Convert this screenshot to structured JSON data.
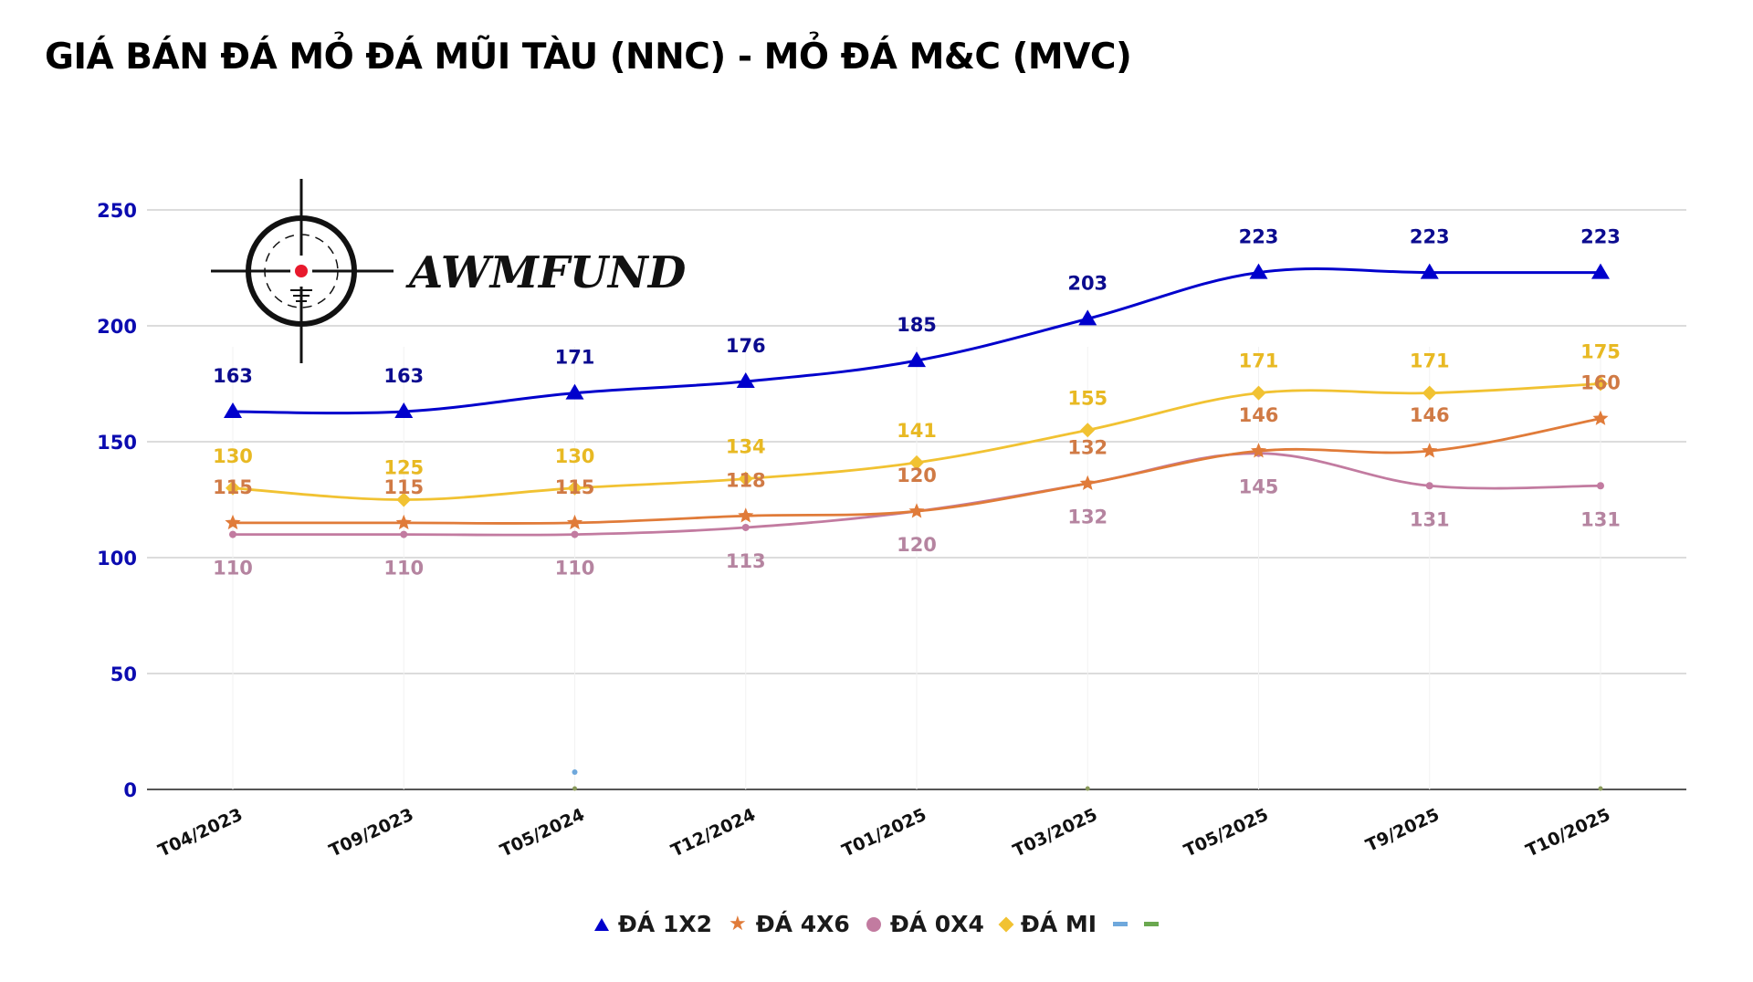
{
  "title": "GIÁ BÁN ĐÁ MỎ ĐÁ MŨI TÀU (NNC) - MỎ ĐÁ M&C (MVC)",
  "logo": {
    "text": "AWMFUND",
    "icon": "crosshair-icon"
  },
  "chart_data": {
    "type": "line",
    "title": "GIÁ BÁN ĐÁ MỎ ĐÁ MŨI TÀU (NNC) - MỎ ĐÁ M&C (MVC)",
    "xlabel": "",
    "ylabel": "",
    "ylim": [
      0,
      250
    ],
    "yticks": [
      0,
      50,
      100,
      150,
      200,
      250
    ],
    "grid": true,
    "legend_position": "bottom",
    "categories": [
      "T04/2023",
      "T09/2023",
      "T05/2024",
      "T12/2024",
      "T01/2025",
      "T03/2025",
      "T05/2025",
      "T9/2025",
      "T10/2025"
    ],
    "series": [
      {
        "name": "ĐÁ 1X2",
        "color": "#0000cc",
        "label_color": "#0b0b8f",
        "marker": "triangle",
        "values": [
          163,
          163,
          171,
          176,
          185,
          203,
          223,
          223,
          223
        ]
      },
      {
        "name": "ĐÁ 4X6",
        "color": "#e07b39",
        "label_color": "#d07a45",
        "marker": "star",
        "values": [
          115,
          115,
          115,
          118,
          120,
          132,
          146,
          146,
          160
        ]
      },
      {
        "name": "ĐÁ 0X4",
        "color": "#c27ba0",
        "label_color": "#b584a0",
        "marker": "circle",
        "values": [
          110,
          110,
          110,
          113,
          120,
          132,
          145,
          131,
          131
        ]
      },
      {
        "name": "ĐÁ MI",
        "color": "#f1c232",
        "label_color": "#e8b923",
        "marker": "diamond",
        "values": [
          130,
          125,
          130,
          134,
          141,
          155,
          171,
          171,
          175
        ]
      }
    ],
    "empty_series_colors": [
      "#6fa8dc",
      "#6aa84f"
    ]
  }
}
